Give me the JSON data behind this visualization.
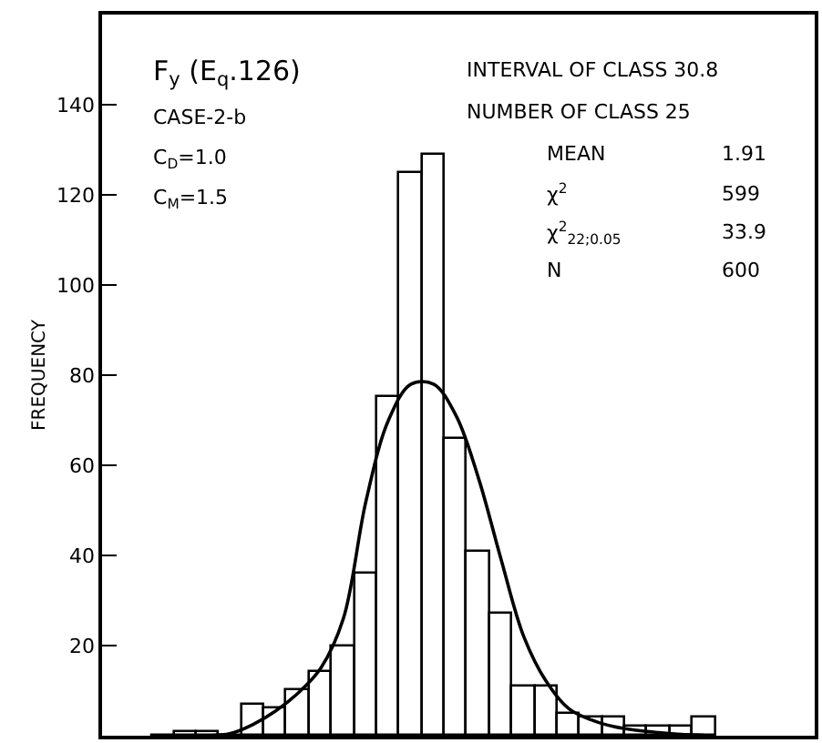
{
  "chart_data": {
    "type": "bar",
    "ylabel": "FREQUENCY",
    "categories": [
      null,
      null,
      null,
      null,
      null,
      null,
      null,
      null,
      null,
      null,
      null,
      null,
      null,
      null,
      null,
      null,
      null,
      null,
      null,
      null,
      null,
      null,
      null,
      null,
      null
    ],
    "series": [
      {
        "color": "#000000",
        "values": [
          0,
          1,
          1,
          0,
          7,
          6,
          10,
          14,
          20,
          36,
          75,
          125,
          129,
          66,
          41,
          27,
          11,
          11,
          5,
          4,
          4,
          2,
          2,
          2,
          4
        ]
      },
      {
        "type": "line",
        "color": "#000000",
        "values": [
          null,
          null,
          0,
          0.5,
          2.5,
          5.5,
          9.5,
          15,
          26,
          52,
          70,
          78,
          78,
          71,
          57,
          39,
          22,
          12,
          6,
          3.5,
          2,
          1.2,
          0.7,
          0.3,
          0.1
        ]
      }
    ],
    "ylim": [
      0,
      160
    ],
    "yticks": [
      20,
      40,
      60,
      80,
      100,
      120,
      140
    ],
    "grid": false,
    "tick_labels": "y",
    "annotations": [
      "F$_{y}$ (E$_{q}$.126)",
      "CASE-2-b",
      "C$_{D}$=1.0",
      "C$_{M}$=1.5",
      "INTERVAL OF CLASS 30.8",
      "NUMBER OF CLASS 25",
      "MEAN",
      "1.91",
      "χ$^{2}$",
      "599",
      "χ$^{2}$$_{22;0.05}$",
      "33.9",
      "N",
      "600"
    ]
  }
}
